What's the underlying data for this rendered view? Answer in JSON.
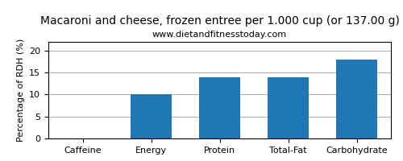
{
  "chart_data": {
    "type": "bar",
    "title": "Macaroni and cheese, frozen entree per 1.000 cup (or 137.00 g)",
    "subtitle": "www.dietandfitnesstoday.com",
    "categories": [
      "Caffeine",
      "Energy",
      "Protein",
      "Total-Fat",
      "Carbohydrate"
    ],
    "values": [
      0,
      10,
      14,
      14,
      18
    ],
    "ylabel": "Percentage of RDH (%)",
    "ylim": [
      0,
      22
    ],
    "yticks": [
      0,
      5,
      10,
      15,
      20
    ],
    "grid": true
  }
}
